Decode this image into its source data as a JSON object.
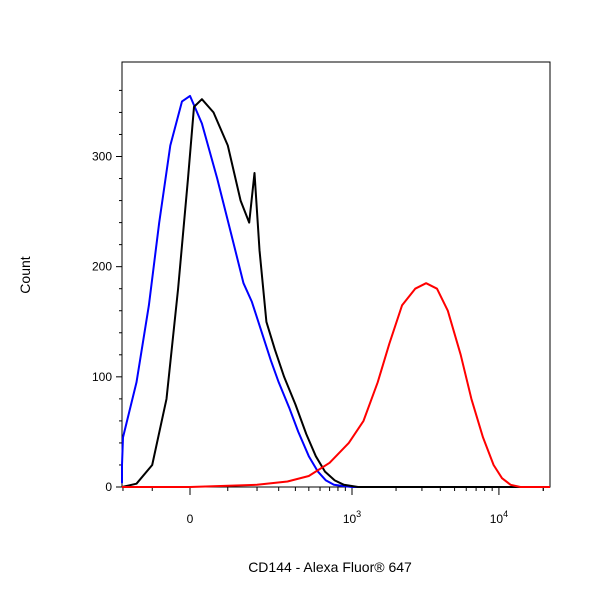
{
  "chart_data": {
    "type": "line",
    "title": "",
    "xlabel": "CD144 - Alexa Fluor® 647",
    "ylabel": "Count",
    "x_scale": "biexponential",
    "ylim": [
      0,
      380
    ],
    "grid": false,
    "legend": "none",
    "y_ticks": [
      {
        "value": 0,
        "label": "0"
      },
      {
        "value": 100,
        "label": "100"
      },
      {
        "value": 200,
        "label": "200"
      },
      {
        "value": 300,
        "label": "300"
      }
    ],
    "x_ticks": [
      {
        "value": 0,
        "label": "0",
        "exp": ""
      },
      {
        "value": 1000,
        "label": "10",
        "exp": "3"
      },
      {
        "value": 10000,
        "label": "10",
        "exp": "4"
      }
    ],
    "series": [
      {
        "color": "#0000ff",
        "points": [
          [
            -500,
            15
          ],
          [
            -420,
            5
          ],
          [
            -340,
            4
          ],
          [
            -260,
            20
          ],
          [
            -200,
            45
          ],
          [
            -150,
            95
          ],
          [
            -110,
            165
          ],
          [
            -80,
            240
          ],
          [
            -50,
            310
          ],
          [
            -20,
            350
          ],
          [
            0,
            355
          ],
          [
            30,
            330
          ],
          [
            70,
            280
          ],
          [
            110,
            230
          ],
          [
            150,
            185
          ],
          [
            180,
            168
          ],
          [
            220,
            140
          ],
          [
            260,
            115
          ],
          [
            300,
            95
          ],
          [
            360,
            72
          ],
          [
            420,
            50
          ],
          [
            500,
            28
          ],
          [
            580,
            14
          ],
          [
            660,
            6
          ],
          [
            750,
            2
          ],
          [
            850,
            1
          ],
          [
            1000,
            0
          ],
          [
            60000,
            0
          ]
        ]
      },
      {
        "color": "#000000",
        "points": [
          [
            -300,
            0
          ],
          [
            -150,
            3
          ],
          [
            -100,
            20
          ],
          [
            -60,
            80
          ],
          [
            -30,
            180
          ],
          [
            -5,
            280
          ],
          [
            10,
            345
          ],
          [
            30,
            352
          ],
          [
            60,
            340
          ],
          [
            100,
            310
          ],
          [
            140,
            260
          ],
          [
            170,
            240
          ],
          [
            190,
            285
          ],
          [
            210,
            215
          ],
          [
            240,
            150
          ],
          [
            280,
            125
          ],
          [
            330,
            100
          ],
          [
            400,
            75
          ],
          [
            480,
            48
          ],
          [
            560,
            28
          ],
          [
            650,
            14
          ],
          [
            760,
            6
          ],
          [
            880,
            2
          ],
          [
            1100,
            0
          ],
          [
            60000,
            0
          ]
        ]
      },
      {
        "color": "#ff0000",
        "points": [
          [
            -300,
            0
          ],
          [
            0,
            0
          ],
          [
            200,
            2
          ],
          [
            350,
            5
          ],
          [
            500,
            10
          ],
          [
            700,
            22
          ],
          [
            950,
            40
          ],
          [
            1200,
            60
          ],
          [
            1500,
            95
          ],
          [
            1800,
            130
          ],
          [
            2200,
            165
          ],
          [
            2700,
            180
          ],
          [
            3200,
            185
          ],
          [
            3800,
            180
          ],
          [
            4500,
            160
          ],
          [
            5500,
            120
          ],
          [
            6500,
            80
          ],
          [
            7800,
            45
          ],
          [
            9200,
            20
          ],
          [
            10500,
            8
          ],
          [
            12000,
            2
          ],
          [
            14000,
            0
          ],
          [
            60000,
            0
          ]
        ]
      }
    ]
  }
}
